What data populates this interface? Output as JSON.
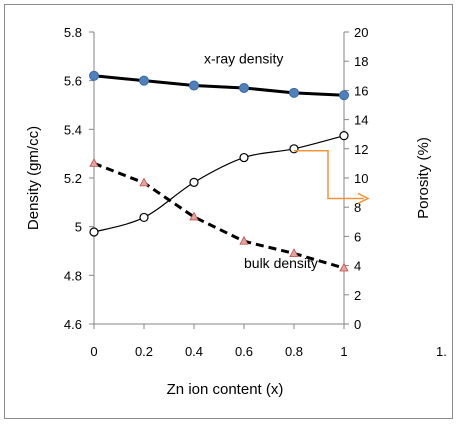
{
  "chart_data": {
    "type": "line",
    "xlabel": "Zn ion content (x)",
    "ylabel_left": "Density (gm/cc)",
    "ylabel_right": "Porosity (%)",
    "x_ticks": [
      "0",
      "0.2",
      "0.4",
      "0.6",
      "0.8",
      "1"
    ],
    "y_left_ticks": [
      "4.6",
      "4.8",
      "5",
      "5.2",
      "5.4",
      "5.6",
      "5.8"
    ],
    "y_right_ticks": [
      "0",
      "2",
      "4",
      "6",
      "8",
      "10",
      "12",
      "14",
      "16",
      "18",
      "20"
    ],
    "xlim": [
      0,
      1
    ],
    "ylim_left": [
      4.6,
      5.8
    ],
    "ylim_right": [
      0,
      20
    ],
    "grid": false,
    "x": [
      0,
      0.2,
      0.4,
      0.6,
      0.8,
      1.0
    ],
    "series": [
      {
        "label": "x-ray density",
        "axis": "left",
        "values": [
          5.62,
          5.6,
          5.58,
          5.57,
          5.55,
          5.54
        ],
        "color": "#000000",
        "marker_color": "#4f81bd"
      },
      {
        "label": "bulk density",
        "axis": "left",
        "values": [
          5.26,
          5.18,
          5.04,
          4.94,
          4.89,
          4.83
        ],
        "color": "#000000",
        "marker_color": "#e3a39f"
      },
      {
        "label": "",
        "axis": "right",
        "values": [
          6.3,
          7.3,
          9.7,
          11.4,
          12.0,
          12.9
        ],
        "color": "#000000",
        "marker_color": "#ffffff"
      }
    ],
    "arrow_color": "#f0953a",
    "stray_mark": "1."
  }
}
